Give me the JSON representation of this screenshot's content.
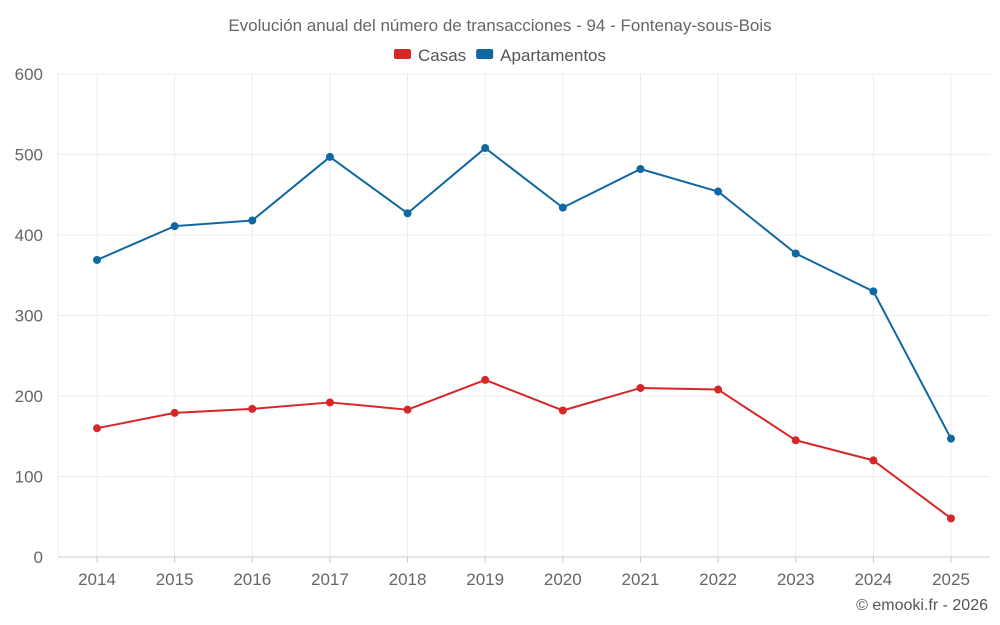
{
  "chart_data": {
    "type": "line",
    "title": "Evolución anual del número de transacciones - 94 - Fontenay-sous-Bois",
    "categories": [
      "2014",
      "2015",
      "2016",
      "2017",
      "2018",
      "2019",
      "2020",
      "2021",
      "2022",
      "2023",
      "2024",
      "2025"
    ],
    "ylim": [
      0,
      600
    ],
    "yticks": [
      0,
      100,
      200,
      300,
      400,
      500,
      600
    ],
    "xlabel": "",
    "ylabel": "",
    "grid": true,
    "legend_position": "top-center",
    "series": [
      {
        "name": "Casas",
        "color": "#d62728",
        "values": [
          160,
          179,
          184,
          192,
          183,
          220,
          182,
          210,
          208,
          145,
          120,
          48
        ]
      },
      {
        "name": "Apartamentos",
        "color": "#1068a0",
        "values": [
          369,
          411,
          418,
          497,
          427,
          508,
          434,
          482,
          454,
          377,
          330,
          147
        ]
      }
    ]
  },
  "credit": "© emooki.fr - 2026"
}
